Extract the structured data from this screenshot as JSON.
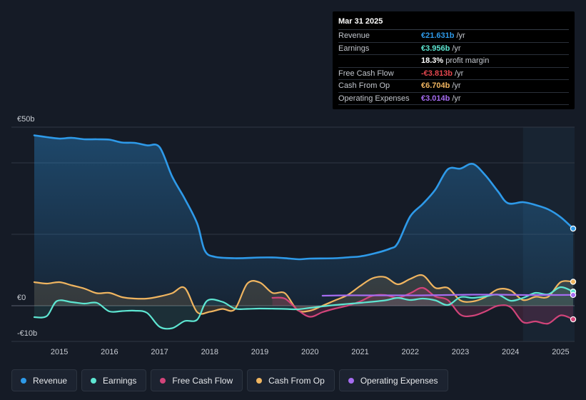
{
  "tooltip": {
    "date": "Mar 31 2025",
    "rows": [
      {
        "label": "Revenue",
        "value": "€21.631b",
        "unit": "/yr",
        "color": "#2e9ae9"
      },
      {
        "label": "Earnings",
        "value": "€3.956b",
        "unit": "/yr",
        "color": "#5ee6d2"
      },
      {
        "label": "",
        "value": "18.3%",
        "unit": "profit margin",
        "color": "#ffffff"
      },
      {
        "label": "Free Cash Flow",
        "value": "-€3.813b",
        "unit": "/yr",
        "color": "#e5474f"
      },
      {
        "label": "Cash From Op",
        "value": "€6.704b",
        "unit": "/yr",
        "color": "#f0b560"
      },
      {
        "label": "Operating Expenses",
        "value": "€3.014b",
        "unit": "/yr",
        "color": "#a56cf0"
      }
    ]
  },
  "legend": [
    {
      "label": "Revenue",
      "color": "#2e9ae9"
    },
    {
      "label": "Earnings",
      "color": "#5ee6d2"
    },
    {
      "label": "Free Cash Flow",
      "color": "#d2447a"
    },
    {
      "label": "Cash From Op",
      "color": "#f0b560"
    },
    {
      "label": "Operating Expenses",
      "color": "#a56cf0"
    }
  ],
  "chart_data": {
    "type": "area",
    "y_axis_labels": [
      "€50b",
      "€0",
      "-€10b"
    ],
    "ylim": [
      -10,
      50
    ],
    "xlim": [
      2014.5,
      2025.25
    ],
    "x_tick_labels": [
      "2015",
      "2016",
      "2017",
      "2018",
      "2019",
      "2020",
      "2021",
      "2022",
      "2023",
      "2024",
      "2025"
    ],
    "x_ticks": [
      2015,
      2016,
      2017,
      2018,
      2019,
      2020,
      2021,
      2022,
      2023,
      2024,
      2025
    ],
    "forecast_start": 2024.25,
    "series": [
      {
        "name": "Revenue",
        "color": "#2e9ae9",
        "points": [
          [
            2014.5,
            47.7
          ],
          [
            2014.75,
            47.2
          ],
          [
            2015.0,
            46.8
          ],
          [
            2015.25,
            47.0
          ],
          [
            2015.5,
            46.6
          ],
          [
            2015.75,
            46.6
          ],
          [
            2016.0,
            46.5
          ],
          [
            2016.25,
            45.7
          ],
          [
            2016.5,
            45.6
          ],
          [
            2016.75,
            44.9
          ],
          [
            2017.0,
            44.4
          ],
          [
            2017.25,
            36.2
          ],
          [
            2017.5,
            30.0
          ],
          [
            2017.75,
            23.0
          ],
          [
            2017.9,
            15.5
          ],
          [
            2018.1,
            13.7
          ],
          [
            2018.5,
            13.3
          ],
          [
            2019.0,
            13.5
          ],
          [
            2019.3,
            13.5
          ],
          [
            2019.6,
            13.2
          ],
          [
            2019.8,
            13.0
          ],
          [
            2020.0,
            13.2
          ],
          [
            2020.5,
            13.3
          ],
          [
            2020.8,
            13.6
          ],
          [
            2021.0,
            13.8
          ],
          [
            2021.3,
            14.7
          ],
          [
            2021.6,
            16.0
          ],
          [
            2021.75,
            17.5
          ],
          [
            2022.0,
            25.0
          ],
          [
            2022.25,
            28.5
          ],
          [
            2022.5,
            32.5
          ],
          [
            2022.75,
            38.2
          ],
          [
            2023.0,
            38.4
          ],
          [
            2023.25,
            39.7
          ],
          [
            2023.5,
            36.5
          ],
          [
            2023.75,
            32.0
          ],
          [
            2023.95,
            28.7
          ],
          [
            2024.25,
            29.0
          ],
          [
            2024.5,
            28.2
          ],
          [
            2024.75,
            27.0
          ],
          [
            2025.0,
            24.8
          ],
          [
            2025.25,
            21.6
          ]
        ]
      },
      {
        "name": "Earnings",
        "color": "#5ee6d2",
        "points": [
          [
            2014.5,
            -3.2
          ],
          [
            2014.75,
            -2.9
          ],
          [
            2014.95,
            1.3
          ],
          [
            2015.25,
            1.0
          ],
          [
            2015.5,
            0.6
          ],
          [
            2015.75,
            0.8
          ],
          [
            2016.0,
            -1.6
          ],
          [
            2016.25,
            -1.5
          ],
          [
            2016.5,
            -1.4
          ],
          [
            2016.75,
            -2.0
          ],
          [
            2017.0,
            -5.9
          ],
          [
            2017.25,
            -6.3
          ],
          [
            2017.5,
            -4.3
          ],
          [
            2017.75,
            -3.9
          ],
          [
            2017.95,
            1.4
          ],
          [
            2018.25,
            1.1
          ],
          [
            2018.5,
            -0.8
          ],
          [
            2018.75,
            -0.9
          ],
          [
            2019.0,
            -0.8
          ],
          [
            2019.5,
            -0.9
          ],
          [
            2019.75,
            -1.0
          ],
          [
            2020.0,
            -0.6
          ],
          [
            2020.5,
            0.2
          ],
          [
            2021.0,
            0.8
          ],
          [
            2021.5,
            1.5
          ],
          [
            2021.75,
            2.2
          ],
          [
            2022.0,
            1.6
          ],
          [
            2022.25,
            2.0
          ],
          [
            2022.5,
            1.5
          ],
          [
            2022.75,
            0.2
          ],
          [
            2023.0,
            2.4
          ],
          [
            2023.25,
            2.2
          ],
          [
            2023.5,
            2.6
          ],
          [
            2023.75,
            3.1
          ],
          [
            2024.0,
            1.4
          ],
          [
            2024.25,
            2.2
          ],
          [
            2024.5,
            3.6
          ],
          [
            2024.75,
            3.2
          ],
          [
            2025.0,
            5.2
          ],
          [
            2025.25,
            3.96
          ]
        ]
      },
      {
        "name": "Free Cash Flow",
        "color": "#d2447a",
        "points": [
          [
            2019.25,
            2.2
          ],
          [
            2019.5,
            2.0
          ],
          [
            2019.75,
            -1.1
          ],
          [
            2020.0,
            -3.1
          ],
          [
            2020.25,
            -1.8
          ],
          [
            2020.5,
            -0.8
          ],
          [
            2020.75,
            0.0
          ],
          [
            2021.0,
            1.2
          ],
          [
            2021.25,
            2.8
          ],
          [
            2021.5,
            3.0
          ],
          [
            2021.75,
            2.2
          ],
          [
            2022.0,
            3.5
          ],
          [
            2022.25,
            5.0
          ],
          [
            2022.5,
            2.6
          ],
          [
            2022.75,
            1.6
          ],
          [
            2023.0,
            -2.5
          ],
          [
            2023.25,
            -2.8
          ],
          [
            2023.5,
            -1.6
          ],
          [
            2023.75,
            0.0
          ],
          [
            2024.0,
            -0.4
          ],
          [
            2024.25,
            -4.6
          ],
          [
            2024.5,
            -4.4
          ],
          [
            2024.75,
            -5.0
          ],
          [
            2025.0,
            -2.7
          ],
          [
            2025.25,
            -3.81
          ]
        ]
      },
      {
        "name": "Cash From Op",
        "color": "#f0b560",
        "points": [
          [
            2014.5,
            6.6
          ],
          [
            2014.75,
            6.2
          ],
          [
            2015.0,
            6.6
          ],
          [
            2015.25,
            5.7
          ],
          [
            2015.5,
            4.8
          ],
          [
            2015.75,
            3.5
          ],
          [
            2016.0,
            3.6
          ],
          [
            2016.25,
            2.4
          ],
          [
            2016.5,
            2.0
          ],
          [
            2016.75,
            2.0
          ],
          [
            2017.0,
            2.6
          ],
          [
            2017.25,
            3.5
          ],
          [
            2017.5,
            5.0
          ],
          [
            2017.75,
            -1.8
          ],
          [
            2018.0,
            -1.7
          ],
          [
            2018.25,
            -0.9
          ],
          [
            2018.5,
            -1.0
          ],
          [
            2018.75,
            6.2
          ],
          [
            2019.0,
            6.5
          ],
          [
            2019.25,
            3.6
          ],
          [
            2019.5,
            3.5
          ],
          [
            2019.75,
            -1.2
          ],
          [
            2020.0,
            -1.4
          ],
          [
            2020.25,
            0.0
          ],
          [
            2020.5,
            1.5
          ],
          [
            2020.75,
            3.0
          ],
          [
            2021.0,
            5.5
          ],
          [
            2021.25,
            7.7
          ],
          [
            2021.5,
            8.0
          ],
          [
            2021.75,
            6.0
          ],
          [
            2022.0,
            7.5
          ],
          [
            2022.25,
            8.5
          ],
          [
            2022.5,
            5.0
          ],
          [
            2022.75,
            5.0
          ],
          [
            2023.0,
            1.5
          ],
          [
            2023.25,
            1.2
          ],
          [
            2023.5,
            2.4
          ],
          [
            2023.75,
            4.6
          ],
          [
            2024.0,
            4.3
          ],
          [
            2024.25,
            1.6
          ],
          [
            2024.5,
            2.5
          ],
          [
            2024.75,
            2.5
          ],
          [
            2025.0,
            6.6
          ],
          [
            2025.25,
            6.7
          ]
        ]
      },
      {
        "name": "Operating Expenses",
        "color": "#a56cf0",
        "points": [
          [
            2020.25,
            2.8
          ],
          [
            2020.75,
            2.9
          ],
          [
            2021.25,
            2.9
          ],
          [
            2021.75,
            2.9
          ],
          [
            2022.25,
            2.9
          ],
          [
            2022.75,
            3.0
          ],
          [
            2023.25,
            3.1
          ],
          [
            2023.75,
            3.1
          ],
          [
            2024.25,
            3.0
          ],
          [
            2024.75,
            3.0
          ],
          [
            2025.25,
            3.01
          ]
        ]
      }
    ]
  }
}
